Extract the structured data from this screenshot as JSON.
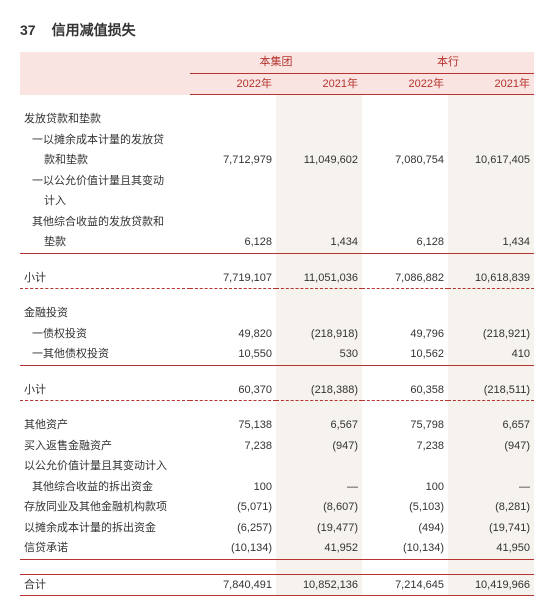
{
  "heading": {
    "number": "37",
    "title": "信用减值损失"
  },
  "columns": {
    "group1": "本集团",
    "group2": "本行",
    "y2022": "2022年",
    "y2021": "2021年"
  },
  "section1": {
    "title": "发放贷款和垫款",
    "row1": {
      "label": "一以摊余成本计量的发放贷",
      "label2": "款和垫款",
      "g1_2022": "7,712,979",
      "g1_2021": "11,049,602",
      "g2_2022": "7,080,754",
      "g2_2021": "10,617,405"
    },
    "row2": {
      "label": "一以公允价值计量且其变动",
      "label2": "计入"
    },
    "row3": {
      "label": "其他综合收益的发放贷款和",
      "label2": "垫款",
      "g1_2022": "6,128",
      "g1_2021": "1,434",
      "g2_2022": "6,128",
      "g2_2021": "1,434"
    },
    "subtotal": {
      "label": "小计",
      "g1_2022": "7,719,107",
      "g1_2021": "11,051,036",
      "g2_2022": "7,086,882",
      "g2_2021": "10,618,839"
    }
  },
  "section2": {
    "title": "金融投资",
    "row1": {
      "label": "一债权投资",
      "g1_2022": "49,820",
      "g1_2021": "(218,918)",
      "g2_2022": "49,796",
      "g2_2021": "(218,921)"
    },
    "row2": {
      "label": "一其他债权投资",
      "g1_2022": "10,550",
      "g1_2021": "530",
      "g2_2022": "10,562",
      "g2_2021": "410"
    },
    "subtotal": {
      "label": "小计",
      "g1_2022": "60,370",
      "g1_2021": "(218,388)",
      "g2_2022": "60,358",
      "g2_2021": "(218,511)"
    }
  },
  "section3": {
    "row1": {
      "label": "其他资产",
      "g1_2022": "75,138",
      "g1_2021": "6,567",
      "g2_2022": "75,798",
      "g2_2021": "6,657"
    },
    "row2": {
      "label": "买入返售金融资产",
      "g1_2022": "7,238",
      "g1_2021": "(947)",
      "g2_2022": "7,238",
      "g2_2021": "(947)"
    },
    "row3": {
      "label": "以公允价值计量且其变动计入"
    },
    "row4": {
      "label": "其他综合收益的拆出资金",
      "g1_2022": "100",
      "g1_2021": "—",
      "g2_2022": "100",
      "g2_2021": "—"
    },
    "row5": {
      "label": "存放同业及其他金融机构款项",
      "g1_2022": "(5,071)",
      "g1_2021": "(8,607)",
      "g2_2022": "(5,103)",
      "g2_2021": "(8,281)"
    },
    "row6": {
      "label": "以摊余成本计量的拆出资金",
      "g1_2022": "(6,257)",
      "g1_2021": "(19,477)",
      "g2_2022": "(494)",
      "g2_2021": "(19,741)"
    },
    "row7": {
      "label": "信贷承诺",
      "g1_2022": "(10,134)",
      "g1_2021": "41,952",
      "g2_2022": "(10,134)",
      "g2_2021": "41,950"
    }
  },
  "total": {
    "label": "合计",
    "g1_2022": "7,840,491",
    "g1_2021": "10,852,136",
    "g2_2022": "7,214,645",
    "g2_2021": "10,419,966"
  }
}
